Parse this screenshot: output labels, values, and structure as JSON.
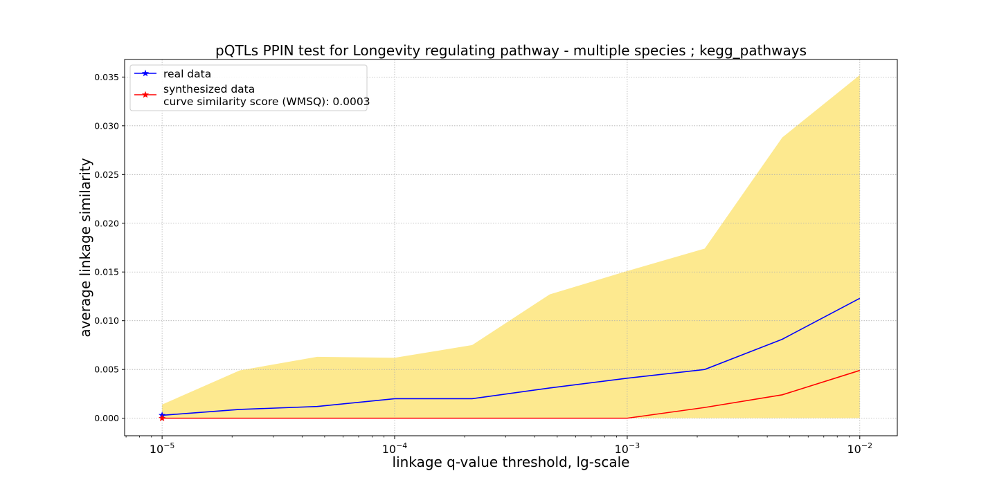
{
  "chart_data": {
    "type": "line",
    "title": "pQTLs PPIN test for Longevity regulating pathway - multiple species ; kegg_pathways",
    "xlabel": "linkage q-value threshold, lg-scale",
    "ylabel": "average linkage similarity",
    "xscale": "log",
    "xlim": [
      6.9e-06,
      0.0145
    ],
    "ylim": [
      -0.0018,
      0.0368
    ],
    "grid": true,
    "legend_position": "upper-left",
    "x": [
      1e-05,
      2.154e-05,
      4.642e-05,
      0.0001,
      0.0002154,
      0.0004642,
      0.001,
      0.002154,
      0.004642,
      0.01
    ],
    "x_ticks": [
      {
        "value": 1e-05,
        "base": "10",
        "exp": "−5"
      },
      {
        "value": 0.0001,
        "base": "10",
        "exp": "−4"
      },
      {
        "value": 0.001,
        "base": "10",
        "exp": "−3"
      },
      {
        "value": 0.01,
        "base": "10",
        "exp": "−2"
      }
    ],
    "y_ticks": [
      {
        "value": 0.0,
        "label": "0.000"
      },
      {
        "value": 0.005,
        "label": "0.005"
      },
      {
        "value": 0.01,
        "label": "0.010"
      },
      {
        "value": 0.015,
        "label": "0.015"
      },
      {
        "value": 0.02,
        "label": "0.020"
      },
      {
        "value": 0.025,
        "label": "0.025"
      },
      {
        "value": 0.03,
        "label": "0.030"
      },
      {
        "value": 0.035,
        "label": "0.035"
      }
    ],
    "band": {
      "color": "#fde98f",
      "lower": [
        0,
        0,
        0,
        0,
        0,
        0,
        0,
        0,
        0,
        0
      ],
      "upper": [
        0.0014,
        0.0049,
        0.0063,
        0.0062,
        0.0075,
        0.0127,
        0.0151,
        0.0174,
        0.0288,
        0.0352
      ]
    },
    "series": [
      {
        "name": "real data",
        "color": "#0000ff",
        "values": [
          0.0003,
          0.0009,
          0.0012,
          0.002,
          0.002,
          0.0031,
          0.0041,
          0.005,
          0.0081,
          0.0123
        ]
      },
      {
        "name": "synthesized data\ncurve similarity score (WMSQ): 0.0003",
        "color": "#ff0000",
        "values": [
          0,
          0,
          0,
          0,
          0,
          0,
          0,
          0.0011,
          0.0024,
          0.0049
        ]
      }
    ]
  }
}
